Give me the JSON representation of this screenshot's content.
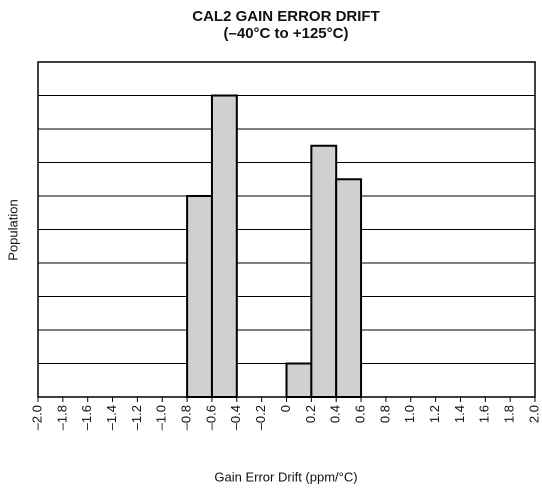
{
  "chart_data": {
    "type": "histogram",
    "title": "CAL2 GAIN ERROR DRIFT",
    "subtitle": "(–40°C to +125°C)",
    "x_label": "Gain Error Drift (ppm/°C)",
    "y_label": "Population",
    "bins": [
      -2.0,
      -1.8,
      -1.6,
      -1.4,
      -1.2,
      -1.0,
      -0.8,
      -0.6,
      -0.4,
      -0.2,
      0,
      0.2,
      0.4,
      0.6,
      0.8,
      1.0,
      1.2,
      1.4,
      1.6,
      1.8,
      2.0
    ],
    "values": [
      0,
      0,
      0,
      0,
      0,
      0,
      6,
      9,
      0,
      0,
      1,
      7.5,
      6.5,
      0,
      0,
      0,
      0,
      0,
      0,
      0
    ],
    "color": "#d0d0d0",
    "xlim": [
      -2.0,
      2.0
    ],
    "xticks": [
      {
        "value": -2.0,
        "label": "–2.0"
      },
      {
        "value": -1.8,
        "label": "–1.8"
      },
      {
        "value": -1.6,
        "label": "–1.6"
      },
      {
        "value": -1.4,
        "label": "–1.4"
      },
      {
        "value": -1.2,
        "label": "–1.2"
      },
      {
        "value": -1.0,
        "label": "–1.0"
      },
      {
        "value": -0.8,
        "label": "–0.8"
      },
      {
        "value": -0.6,
        "label": "–0.6"
      },
      {
        "value": -0.4,
        "label": "–0.4"
      },
      {
        "value": -0.2,
        "label": "–0.2"
      },
      0,
      0.2,
      0.4,
      0.6,
      0.8,
      {
        "value": 1.0,
        "label": "1.0"
      },
      1.2,
      1.4,
      1.6,
      1.8,
      {
        "value": 2.0,
        "label": "2.0"
      }
    ],
    "ylim": [
      0,
      10
    ],
    "yticks": [
      0,
      1,
      2,
      3,
      4,
      5,
      6,
      7,
      8,
      9,
      10
    ],
    "grid": true
  }
}
